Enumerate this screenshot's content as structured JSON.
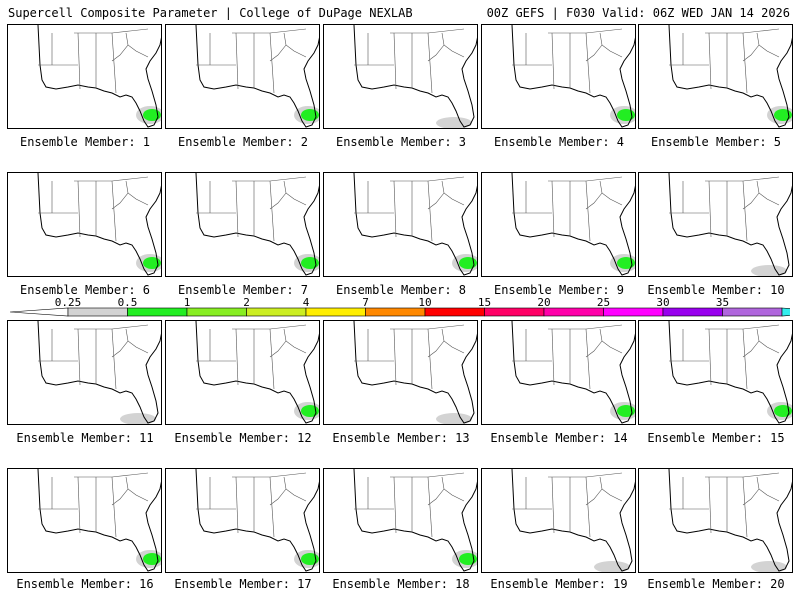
{
  "header": {
    "title_left": "Supercell Composite Parameter | College of DuPage NEXLAB",
    "title_right": "00Z GEFS | F030 Valid: 06Z WED JAN 14 2026"
  },
  "members": [
    {
      "label": "Ensemble Member: 1",
      "shading": "green"
    },
    {
      "label": "Ensemble Member: 2",
      "shading": "green"
    },
    {
      "label": "Ensemble Member: 3",
      "shading": "gray"
    },
    {
      "label": "Ensemble Member: 4",
      "shading": "green"
    },
    {
      "label": "Ensemble Member: 5",
      "shading": "green"
    },
    {
      "label": "Ensemble Member: 6",
      "shading": "green"
    },
    {
      "label": "Ensemble Member: 7",
      "shading": "green"
    },
    {
      "label": "Ensemble Member: 8",
      "shading": "green"
    },
    {
      "label": "Ensemble Member: 9",
      "shading": "green"
    },
    {
      "label": "Ensemble Member: 10",
      "shading": "gray"
    },
    {
      "label": "Ensemble Member: 11",
      "shading": "gray"
    },
    {
      "label": "Ensemble Member: 12",
      "shading": "green"
    },
    {
      "label": "Ensemble Member: 13",
      "shading": "gray"
    },
    {
      "label": "Ensemble Member: 14",
      "shading": "green"
    },
    {
      "label": "Ensemble Member: 15",
      "shading": "green"
    },
    {
      "label": "Ensemble Member: 16",
      "shading": "green"
    },
    {
      "label": "Ensemble Member: 17",
      "shading": "green"
    },
    {
      "label": "Ensemble Member: 18",
      "shading": "green"
    },
    {
      "label": "Ensemble Member: 19",
      "shading": "gray"
    },
    {
      "label": "Ensemble Member: 20",
      "shading": "gray"
    }
  ],
  "colorbar": {
    "labels": [
      "0.25",
      "0.5",
      "1",
      "2",
      "4",
      "7",
      "10",
      "15",
      "20",
      "25",
      "30",
      "35"
    ],
    "colors": [
      "#d3d3d3",
      "#22ee22",
      "#88ee22",
      "#ccee22",
      "#ffee00",
      "#ff8800",
      "#ff0000",
      "#ff0066",
      "#ff00aa",
      "#ff00ff",
      "#9900ee",
      "#b066dd",
      "#33eeee"
    ]
  }
}
